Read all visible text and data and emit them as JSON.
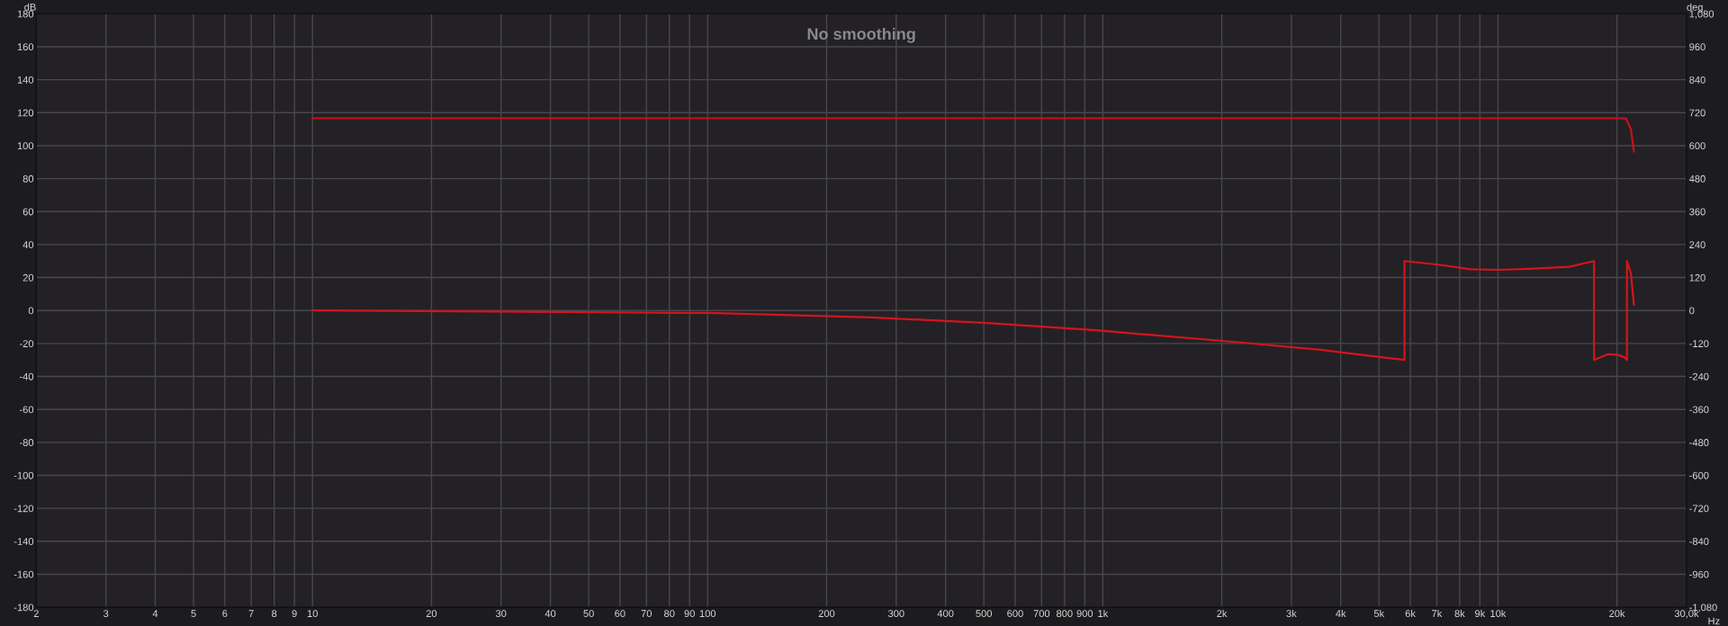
{
  "chart_data": {
    "type": "line",
    "title": "No smoothing",
    "xlabel": "Hz",
    "ylabel": "dB",
    "y2label": "deg",
    "log": "x",
    "grid": true,
    "xlim": [
      2,
      30000
    ],
    "xticks": [
      2,
      3,
      4,
      5,
      6,
      7,
      8,
      9,
      10,
      20,
      30,
      40,
      50,
      60,
      70,
      80,
      90,
      100,
      200,
      300,
      400,
      500,
      600,
      700,
      800,
      900,
      {
        "value": 1000,
        "label": "1k"
      },
      {
        "value": 2000,
        "label": "2k"
      },
      {
        "value": 3000,
        "label": "3k"
      },
      {
        "value": 4000,
        "label": "4k"
      },
      {
        "value": 5000,
        "label": "5k"
      },
      {
        "value": 6000,
        "label": "6k"
      },
      {
        "value": 7000,
        "label": "7k"
      },
      {
        "value": 8000,
        "label": "8k"
      },
      {
        "value": 9000,
        "label": "9k"
      },
      {
        "value": 10000,
        "label": "10k"
      },
      {
        "value": 20000,
        "label": "20k"
      },
      {
        "value": 30000,
        "label": "30,0k"
      }
    ],
    "ylim": [
      -180,
      180
    ],
    "yticks": [
      -180,
      -160,
      -140,
      -120,
      -100,
      -80,
      -60,
      -40,
      -20,
      0,
      20,
      40,
      60,
      80,
      100,
      120,
      140,
      160,
      180
    ],
    "y2lim": [
      -1080,
      1080
    ],
    "y2ticks": [
      {
        "value": -1080,
        "label": "-1,080"
      },
      -960,
      -840,
      -720,
      -600,
      -480,
      -360,
      -240,
      -120,
      0,
      120,
      240,
      360,
      480,
      600,
      720,
      840,
      960,
      {
        "value": 1080,
        "label": "1,080"
      }
    ],
    "series": [
      {
        "color": "#c8101c",
        "x": [
          10,
          100,
          1000,
          10000,
          20400,
          21100,
          21700,
          22080
        ],
        "values": [
          116.6,
          116.6,
          116.6,
          116.6,
          116.6,
          116.4,
          109.8,
          96.4
        ]
      },
      {
        "color": "#d4141e",
        "axis": "y2",
        "x": [
          10,
          101,
          259,
          498,
          960,
          2100,
          3555,
          5800,
          5800,
          7140,
          8510,
          10100,
          12070,
          15160,
          17500,
          17500,
          19000,
          20050,
          20900,
          21200,
          21200,
          21700,
          22080
        ],
        "values": [
          0,
          -9,
          -25,
          -45,
          -72,
          -113,
          -143,
          -180,
          180,
          166,
          150,
          148,
          152,
          159,
          180,
          -180,
          -159,
          -161,
          -170,
          -180,
          180,
          135,
          21
        ]
      }
    ]
  }
}
